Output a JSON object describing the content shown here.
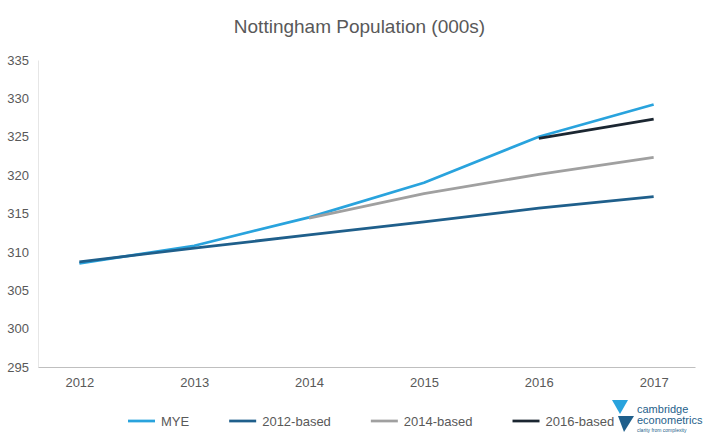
{
  "chart_data": {
    "type": "line",
    "title": "Nottingham Population (000s)",
    "categories": [
      "2012",
      "2013",
      "2014",
      "2015",
      "2016",
      "2017"
    ],
    "series": [
      {
        "name": "MYE",
        "color": "#29a3dd",
        "values": [
          308.5,
          310.8,
          314.5,
          319.0,
          325.0,
          329.2
        ]
      },
      {
        "name": "2012-based",
        "color": "#1f5f8b",
        "values": [
          308.7,
          310.5,
          312.2,
          313.9,
          315.7,
          317.2
        ]
      },
      {
        "name": "2014-based",
        "color": "#a0a0a0",
        "values": [
          null,
          null,
          314.4,
          317.6,
          320.1,
          322.3
        ]
      },
      {
        "name": "2016-based",
        "color": "#1b2631",
        "values": [
          null,
          null,
          null,
          null,
          324.8,
          327.3
        ]
      }
    ],
    "ylim": [
      295,
      335
    ],
    "yticks": [
      295,
      300,
      305,
      310,
      315,
      320,
      325,
      330,
      335
    ],
    "grid": false,
    "legend": "bottom",
    "annotations": [
      "cambridge",
      "econometrics",
      "clarity from complexity"
    ]
  }
}
